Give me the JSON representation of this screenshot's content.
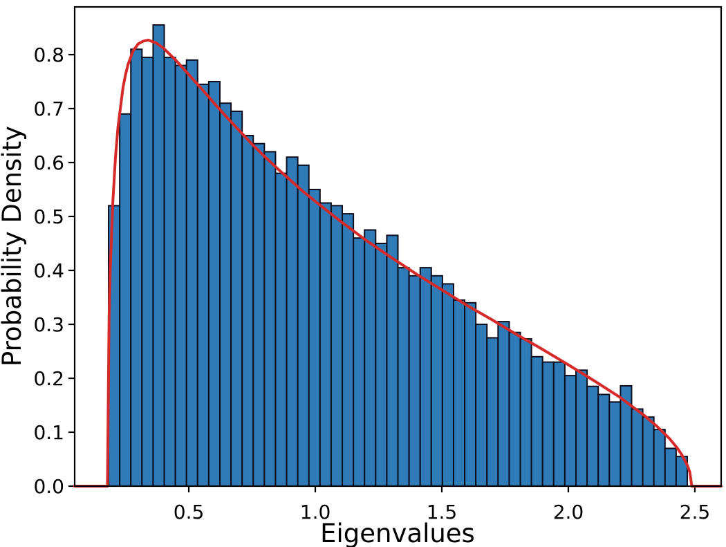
{
  "chart_data": {
    "type": "bar",
    "subtype": "histogram-with-fit",
    "title": "",
    "xlabel": "Eigenvalues",
    "ylabel": "Probability Density",
    "xlim": [
      0.049,
      2.604
    ],
    "ylim": [
      0.0,
      0.8885
    ],
    "grid": false,
    "legend": "none",
    "x_ticks": [
      0.5,
      1.0,
      1.5,
      2.0,
      2.5
    ],
    "x_tick_labels": [
      "0.5",
      "1.0",
      "1.5",
      "2.0",
      "2.5"
    ],
    "y_ticks": [
      0.0,
      0.1,
      0.2,
      0.3,
      0.4,
      0.5,
      0.6,
      0.7,
      0.8
    ],
    "y_tick_labels": [
      "0.0",
      "0.1",
      "0.2",
      "0.3",
      "0.4",
      "0.5",
      "0.6",
      "0.7",
      "0.8"
    ],
    "colors": {
      "bar_fill": "#2e7bb8",
      "bar_edge": "#0c0c1c",
      "curve": "#d62a2a",
      "axis": "#000000",
      "background": "#ffffff"
    },
    "bars": {
      "range_start": 0.183,
      "range_end": 2.47,
      "bin_count": 52,
      "bin_width": 0.04398,
      "values": [
        0.52,
        0.69,
        0.81,
        0.795,
        0.855,
        0.795,
        0.78,
        0.79,
        0.745,
        0.75,
        0.71,
        0.695,
        0.65,
        0.635,
        0.62,
        0.58,
        0.61,
        0.595,
        0.55,
        0.525,
        0.52,
        0.505,
        0.46,
        0.475,
        0.45,
        0.465,
        0.405,
        0.39,
        0.405,
        0.39,
        0.375,
        0.345,
        0.34,
        0.3,
        0.275,
        0.305,
        0.285,
        0.273,
        0.24,
        0.23,
        0.23,
        0.205,
        0.215,
        0.185,
        0.17,
        0.156,
        0.186,
        0.143,
        0.128,
        0.105,
        0.07,
        0.055
      ]
    },
    "curve": {
      "name": "marchenko-pastur-fit",
      "support": [
        0.1786,
        2.488
      ],
      "x": [
        0.049,
        0.17,
        0.1786,
        0.185,
        0.19,
        0.2,
        0.21,
        0.22,
        0.24,
        0.25,
        0.26,
        0.28,
        0.3,
        0.32,
        0.34,
        0.37,
        0.4,
        0.45,
        0.5,
        0.55,
        0.6,
        0.65,
        0.7,
        0.75,
        0.8,
        0.85,
        0.9,
        0.95,
        1.0,
        1.1,
        1.2,
        1.3,
        1.4,
        1.5,
        1.6,
        1.7,
        1.8,
        1.9,
        2.0,
        2.1,
        2.2,
        2.3,
        2.35,
        2.4,
        2.43,
        2.45,
        2.47,
        2.48,
        2.488,
        2.55,
        2.604
      ],
      "y": [
        0,
        0,
        0,
        0.313,
        0.407,
        0.528,
        0.608,
        0.665,
        0.739,
        0.763,
        0.782,
        0.807,
        0.82,
        0.825,
        0.827,
        0.822,
        0.812,
        0.789,
        0.763,
        0.737,
        0.71,
        0.684,
        0.659,
        0.634,
        0.611,
        0.589,
        0.568,
        0.547,
        0.528,
        0.491,
        0.456,
        0.424,
        0.393,
        0.364,
        0.335,
        0.308,
        0.28,
        0.253,
        0.225,
        0.196,
        0.166,
        0.131,
        0.111,
        0.088,
        0.071,
        0.057,
        0.039,
        0.026,
        0,
        0,
        0
      ]
    }
  }
}
